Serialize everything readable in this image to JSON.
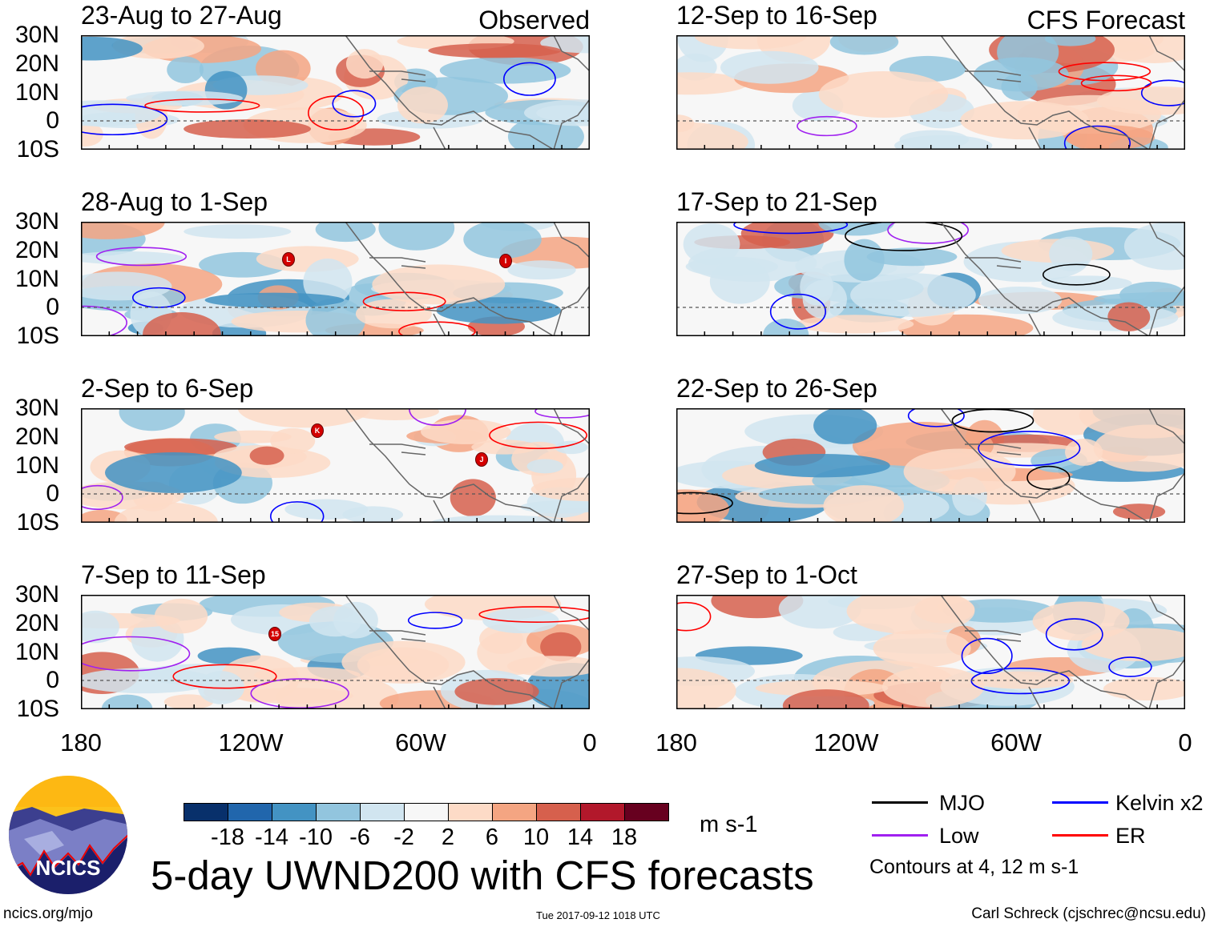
{
  "panels": [
    {
      "title": "23-Aug to 27-Aug",
      "label": "Observed",
      "storms": []
    },
    {
      "title": "28-Aug to 1-Sep",
      "storms": [
        "L",
        "I"
      ]
    },
    {
      "title": "2-Sep to 6-Sep",
      "storms": [
        "K",
        "J"
      ]
    },
    {
      "title": "7-Sep to 11-Sep",
      "storms": [
        "15"
      ]
    },
    {
      "title": "12-Sep to 16-Sep",
      "label": "CFS Forecast",
      "storms": []
    },
    {
      "title": "17-Sep to 21-Sep",
      "storms": []
    },
    {
      "title": "22-Sep to 26-Sep",
      "storms": []
    },
    {
      "title": "27-Sep to 1-Oct",
      "storms": []
    }
  ],
  "lat_labels": [
    "30N",
    "20N",
    "10N",
    "0",
    "10S"
  ],
  "lon_labels": [
    "180",
    "120W",
    "60W",
    "0"
  ],
  "colorbar": {
    "colors": [
      "#08306b",
      "#2166ac",
      "#4393c3",
      "#92c5de",
      "#d1e5f0",
      "#f7f7f7",
      "#fddbc7",
      "#f4a582",
      "#d6604d",
      "#b2182b",
      "#67001f"
    ],
    "ticks": [
      "-18",
      "-14",
      "-10",
      "-6",
      "-2",
      "2",
      "6",
      "10",
      "14",
      "18"
    ],
    "units": "m s-1"
  },
  "legend": {
    "items": [
      {
        "label": "MJO",
        "color": "#000000"
      },
      {
        "label": "Kelvin x2",
        "color": "#0000ff"
      },
      {
        "label": "Low",
        "color": "#a020f0"
      },
      {
        "label": "ER",
        "color": "#ff0000"
      }
    ],
    "note": "Contours at 4, 12 m s-1"
  },
  "title": "5-day UWND200 with CFS forecasts",
  "logo_text": "NCICS",
  "footer": {
    "url": "ncics.org/mjo",
    "timestamp": "Tue 2017-09-12 1018 UTC",
    "credit": "Carl Schreck (cjschrec@ncsu.edu)"
  }
}
